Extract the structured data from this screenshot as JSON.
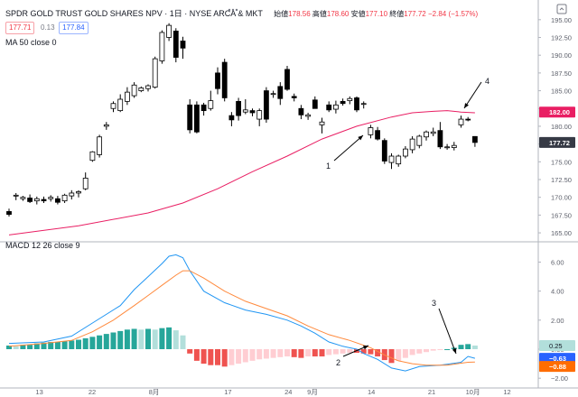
{
  "header": {
    "symbol": "SPDR GOLD TRUST GOLD SHARES NPV",
    "interval": "1日",
    "exchange": "NYSE ARCA & MKT",
    "open_label": "始値",
    "open": "178.56",
    "high_label": "高値",
    "high": "178.60",
    "low_label": "安値",
    "low": "177.10",
    "close_label": "終値",
    "close": "177.72",
    "change": "−2.84 (−1.57%)",
    "price_tag": "177.71",
    "spread": "0.13",
    "price_tag2": "177.84",
    "ma_label": "MA 50 close 0",
    "macd_label": "MACD 12 26 close 9"
  },
  "icons": {
    "settings": "more-dots-icon",
    "expand": "collapse-icon"
  },
  "colors": {
    "candle_up": "#ffffff",
    "candle_down": "#000000",
    "candle_outline": "#000000",
    "ma": "#e91e63",
    "macd": "#2196f3",
    "signal": "#ff8a3d",
    "hist_up_strong": "#26a69a",
    "hist_up_weak": "#b2dfdb",
    "hist_down_strong": "#ef5350",
    "hist_down_weak": "#ffcdd2",
    "ma_tag": "#e91e63",
    "price_tag": "#363a45",
    "macd_tag": "#2962ff",
    "signal_tag": "#ff6d00"
  },
  "annotations": [
    "1",
    "2",
    "3",
    "4"
  ],
  "chart_data": [
    {
      "type": "candlestick",
      "y_ticks": [
        "195.00",
        "192.50",
        "190.00",
        "187.50",
        "185.00",
        "182.50",
        "180.00",
        "177.50",
        "175.00",
        "172.50",
        "170.00",
        "167.50",
        "165.00"
      ],
      "ylim": [
        164.5,
        196.5
      ],
      "x_labels": [
        "13",
        "22",
        "8月",
        "17",
        "24",
        "9月",
        "14",
        "21",
        "10月",
        "12",
        "21"
      ],
      "series": [
        {
          "name": "ohlc",
          "values": [
            [
              168,
              168.4,
              167.3,
              167.6
            ],
            [
              170.2,
              170.6,
              169.6,
              170.3
            ],
            [
              169.8,
              170.2,
              169.5,
              170.0
            ],
            [
              169.9,
              170.4,
              169.2,
              169.4
            ],
            [
              169.5,
              170.1,
              169.0,
              169.8
            ],
            [
              169.7,
              170.1,
              169.2,
              169.5
            ],
            [
              169.8,
              170.3,
              169.4,
              170.0
            ],
            [
              169.8,
              170.2,
              169.0,
              169.3
            ],
            [
              169.5,
              170.5,
              169.2,
              170.3
            ],
            [
              170.2,
              171.0,
              169.7,
              170.6
            ],
            [
              170.6,
              171.0,
              170.0,
              170.8
            ],
            [
              171.2,
              173.5,
              171.0,
              172.7
            ],
            [
              175.2,
              176.5,
              175.0,
              176.4
            ],
            [
              176.0,
              178.8,
              175.6,
              178.5
            ],
            [
              180.0,
              180.6,
              179.5,
              180.2
            ],
            [
              182.5,
              183.5,
              182.0,
              183.2
            ],
            [
              182.2,
              184.5,
              182.0,
              183.8
            ],
            [
              183.5,
              185.5,
              183.0,
              184.8
            ],
            [
              184.3,
              186.2,
              184.0,
              185.8
            ],
            [
              185.0,
              185.6,
              184.8,
              185.4
            ],
            [
              185.3,
              185.9,
              184.9,
              185.7
            ],
            [
              185.5,
              189.8,
              185.3,
              189.5
            ],
            [
              189.2,
              193.5,
              188.8,
              193.2
            ],
            [
              192.5,
              194.5,
              192.0,
              194.2
            ],
            [
              193.4,
              193.8,
              189.0,
              189.7
            ],
            [
              192.0,
              192.6,
              189.5,
              191.0
            ],
            [
              183.0,
              183.8,
              179.0,
              179.5
            ],
            [
              183.0,
              183.5,
              179.0,
              179.2
            ],
            [
              183.0,
              183.3,
              181.5,
              182.2
            ],
            [
              182.5,
              185.0,
              182.2,
              183.6
            ],
            [
              187.5,
              188.3,
              184.5,
              185.3
            ],
            [
              189.0,
              189.5,
              183.5,
              184.0
            ],
            [
              181.5,
              182.0,
              180.0,
              180.9
            ],
            [
              183.5,
              184.0,
              180.8,
              181.5
            ],
            [
              182.0,
              183.8,
              181.7,
              182.3
            ],
            [
              182.2,
              182.5,
              181.4,
              181.9
            ],
            [
              181.0,
              182.5,
              180.0,
              182.2
            ],
            [
              185.0,
              185.5,
              180.5,
              181.0
            ],
            [
              184.5,
              185.0,
              184.0,
              184.6
            ],
            [
              185.6,
              186.2,
              183.0,
              183.9
            ],
            [
              188.0,
              188.5,
              185.0,
              185.2
            ],
            [
              184.2,
              184.6,
              183.5,
              184.0
            ],
            [
              182.5,
              183.0,
              181.0,
              181.6
            ],
            [
              181.4,
              181.9,
              180.9,
              181.6
            ],
            [
              183.7,
              184.2,
              182.5,
              182.5
            ],
            [
              180.2,
              181.2,
              179.0,
              180.6
            ],
            [
              183.0,
              183.5,
              182.0,
              182.3
            ],
            [
              182.4,
              183.6,
              181.8,
              183.0
            ],
            [
              183.5,
              183.9,
              182.9,
              183.2
            ],
            [
              183.6,
              184.2,
              183.1,
              183.9
            ],
            [
              184.0,
              184.2,
              182.0,
              182.3
            ],
            [
              183.1,
              183.5,
              182.5,
              183.2
            ],
            [
              178.8,
              180.2,
              178.3,
              179.8
            ],
            [
              179.4,
              179.9,
              178.0,
              178.2
            ],
            [
              178.0,
              178.3,
              174.7,
              175.1
            ],
            [
              174.9,
              176.2,
              174.0,
              175.8
            ],
            [
              174.7,
              176.0,
              174.3,
              175.8
            ],
            [
              175.8,
              177.2,
              175.5,
              176.8
            ],
            [
              176.7,
              178.6,
              176.2,
              178.2
            ],
            [
              177.3,
              178.8,
              176.9,
              178.6
            ],
            [
              178.5,
              179.4,
              178.0,
              179.2
            ],
            [
              179.0,
              179.8,
              178.6,
              179.2
            ],
            [
              179.4,
              180.6,
              176.8,
              177.1
            ],
            [
              177.1,
              177.5,
              176.7,
              177.1
            ],
            [
              177.0,
              177.8,
              176.6,
              177.3
            ],
            [
              180.2,
              181.5,
              179.8,
              181.0
            ],
            [
              181.0,
              181.3,
              180.7,
              180.9
            ],
            [
              178.56,
              178.6,
              177.1,
              177.72
            ]
          ]
        },
        {
          "name": "MA 50",
          "values": [
            [
              0,
              164.7
            ],
            [
              10,
              166.0
            ],
            [
              20,
              167.8
            ],
            [
              25,
              169.2
            ],
            [
              30,
              171.2
            ],
            [
              35,
              173.6
            ],
            [
              40,
              175.8
            ],
            [
              45,
              178.2
            ],
            [
              50,
              180.0
            ],
            [
              55,
              181.3
            ],
            [
              58,
              181.9
            ],
            [
              61,
              182.1
            ],
            [
              63,
              182.2
            ],
            [
              65,
              182.0
            ],
            [
              67,
              181.9
            ]
          ]
        }
      ],
      "last_values": {
        "ma": "182.00",
        "price": "177.72"
      }
    },
    {
      "type": "line",
      "y_ticks": [
        "6.00",
        "4.00",
        "2.00",
        "0.00",
        "−2.00"
      ],
      "ylim": [
        -2.3,
        6.9
      ],
      "x_labels": [
        "13",
        "22",
        "8月",
        "17",
        "24",
        "9月",
        "14",
        "21",
        "10月",
        "12",
        "21"
      ],
      "series": [
        {
          "name": "MACD",
          "values": [
            [
              0,
              0.4
            ],
            [
              5,
              0.5
            ],
            [
              9,
              0.9
            ],
            [
              12,
              1.8
            ],
            [
              16,
              3.0
            ],
            [
              18,
              4.1
            ],
            [
              20,
              5.0
            ],
            [
              22,
              5.9
            ],
            [
              23,
              6.4
            ],
            [
              24,
              6.5
            ],
            [
              25,
              6.3
            ],
            [
              26,
              5.4
            ],
            [
              28,
              4.0
            ],
            [
              31,
              3.2
            ],
            [
              34,
              2.7
            ],
            [
              37,
              2.4
            ],
            [
              40,
              2.0
            ],
            [
              42,
              1.6
            ],
            [
              44,
              1.1
            ],
            [
              46,
              0.5
            ],
            [
              48,
              0.2
            ],
            [
              50,
              0.0
            ],
            [
              51,
              -0.3
            ],
            [
              53,
              -0.7
            ],
            [
              55,
              -1.3
            ],
            [
              57,
              -1.5
            ],
            [
              59,
              -1.2
            ],
            [
              62,
              -1.1
            ],
            [
              65,
              -0.9
            ],
            [
              66,
              -0.5
            ],
            [
              67,
              -0.63
            ]
          ]
        },
        {
          "name": "Signal",
          "values": [
            [
              0,
              0.2
            ],
            [
              5,
              0.4
            ],
            [
              9,
              0.6
            ],
            [
              12,
              1.2
            ],
            [
              15,
              2.0
            ],
            [
              18,
              3.0
            ],
            [
              20,
              3.7
            ],
            [
              22,
              4.4
            ],
            [
              24,
              5.1
            ],
            [
              25,
              5.4
            ],
            [
              26,
              5.4
            ],
            [
              28,
              4.9
            ],
            [
              31,
              4.0
            ],
            [
              34,
              3.3
            ],
            [
              37,
              2.8
            ],
            [
              40,
              2.3
            ],
            [
              43,
              1.6
            ],
            [
              46,
              1.0
            ],
            [
              49,
              0.6
            ],
            [
              52,
              0.1
            ],
            [
              54,
              -0.4
            ],
            [
              56,
              -0.8
            ],
            [
              58,
              -1.0
            ],
            [
              60,
              -1.1
            ],
            [
              63,
              -1.1
            ],
            [
              66,
              -0.9
            ],
            [
              67,
              -0.88
            ]
          ]
        },
        {
          "name": "Histogram",
          "values": [
            0.25,
            0.2,
            0.3,
            0.3,
            0.4,
            0.45,
            0.5,
            0.5,
            0.55,
            0.6,
            0.65,
            0.75,
            0.85,
            0.95,
            1.05,
            1.15,
            1.25,
            1.35,
            1.4,
            1.35,
            1.4,
            1.35,
            1.45,
            1.5,
            1.3,
            0.95,
            -0.3,
            -0.8,
            -1.0,
            -1.1,
            -1.1,
            -1.2,
            -1.1,
            -1.0,
            -0.9,
            -0.8,
            -0.7,
            -0.65,
            -0.6,
            -0.55,
            -0.5,
            -0.55,
            -0.6,
            -0.5,
            -0.5,
            -0.5,
            -0.4,
            -0.35,
            -0.3,
            -0.25,
            -0.25,
            -0.3,
            -0.35,
            -0.5,
            -0.75,
            -0.95,
            -0.8,
            -0.6,
            -0.4,
            -0.3,
            -0.2,
            -0.1,
            -0.05,
            0.0,
            0.1,
            0.3,
            0.35,
            0.25
          ]
        }
      ],
      "last_values": {
        "hist": "0.25",
        "macd": "−0.63",
        "signal": "−0.88"
      }
    }
  ]
}
